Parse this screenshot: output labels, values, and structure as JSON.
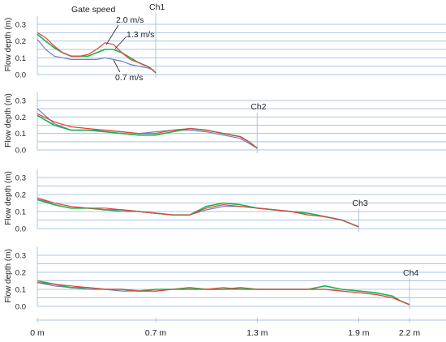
{
  "chart_data": {
    "type": "line",
    "ylabel": "Flow depth (m)",
    "yticks": [
      "0.3",
      "0.2",
      "0.1",
      "0.0"
    ],
    "ylim": [
      0,
      0.35
    ],
    "xlim": [
      0,
      2.3
    ],
    "xticks": [
      {
        "value": 0,
        "label": "0 m"
      },
      {
        "value": 0.7,
        "label": "0.7 m"
      },
      {
        "value": 1.3,
        "label": "1.3 m"
      },
      {
        "value": 1.9,
        "label": "1.9 m"
      },
      {
        "value": 2.2,
        "label": "2.2 m"
      }
    ],
    "legend_title": "Gate speed",
    "series_labels": [
      "2.0 m/s",
      "1.3 m/s",
      "0.7 m/s"
    ],
    "colors": {
      "2.0 m/s": "#e8403a",
      "1.3 m/s": "#19b34b",
      "0.7 m/s": "#6f7fc4"
    },
    "panels": [
      {
        "label": "Ch1",
        "front": 0.7,
        "series": [
          {
            "name": "2.0 m/s",
            "x": [
              0,
              0.05,
              0.1,
              0.15,
              0.2,
              0.25,
              0.3,
              0.35,
              0.4,
              0.45,
              0.5,
              0.55,
              0.6,
              0.65,
              0.68,
              0.7
            ],
            "y": [
              0.25,
              0.22,
              0.17,
              0.13,
              0.11,
              0.11,
              0.12,
              0.15,
              0.19,
              0.18,
              0.13,
              0.09,
              0.07,
              0.05,
              0.03,
              0.01
            ]
          },
          {
            "name": "1.3 m/s",
            "x": [
              0,
              0.05,
              0.1,
              0.15,
              0.2,
              0.25,
              0.3,
              0.35,
              0.4,
              0.45,
              0.5,
              0.55,
              0.6,
              0.65,
              0.68,
              0.7
            ],
            "y": [
              0.24,
              0.2,
              0.16,
              0.13,
              0.11,
              0.11,
              0.11,
              0.13,
              0.15,
              0.15,
              0.13,
              0.1,
              0.07,
              0.05,
              0.03,
              0.01
            ]
          },
          {
            "name": "0.7 m/s",
            "x": [
              0,
              0.05,
              0.1,
              0.15,
              0.2,
              0.25,
              0.3,
              0.35,
              0.4,
              0.45,
              0.5,
              0.55,
              0.6,
              0.65,
              0.68,
              0.7
            ],
            "y": [
              0.21,
              0.15,
              0.11,
              0.1,
              0.09,
              0.09,
              0.09,
              0.09,
              0.1,
              0.09,
              0.08,
              0.06,
              0.05,
              0.04,
              0.03,
              0.01
            ]
          }
        ]
      },
      {
        "label": "Ch2",
        "front": 1.3,
        "series": [
          {
            "name": "2.0 m/s",
            "x": [
              0,
              0.1,
              0.2,
              0.3,
              0.4,
              0.5,
              0.6,
              0.7,
              0.8,
              0.9,
              1.0,
              1.1,
              1.2,
              1.25,
              1.3
            ],
            "y": [
              0.22,
              0.17,
              0.14,
              0.13,
              0.12,
              0.11,
              0.1,
              0.1,
              0.12,
              0.13,
              0.12,
              0.1,
              0.08,
              0.05,
              0.01
            ]
          },
          {
            "name": "1.3 m/s",
            "x": [
              0,
              0.1,
              0.2,
              0.3,
              0.4,
              0.5,
              0.6,
              0.7,
              0.8,
              0.9,
              1.0,
              1.1,
              1.2,
              1.25,
              1.3
            ],
            "y": [
              0.21,
              0.15,
              0.12,
              0.12,
              0.11,
              0.1,
              0.09,
              0.09,
              0.11,
              0.13,
              0.12,
              0.1,
              0.08,
              0.05,
              0.01
            ]
          },
          {
            "name": "0.7 m/s",
            "x": [
              0,
              0.1,
              0.2,
              0.3,
              0.4,
              0.5,
              0.6,
              0.7,
              0.8,
              0.9,
              1.0,
              1.1,
              1.2,
              1.25,
              1.3
            ],
            "y": [
              0.25,
              0.16,
              0.12,
              0.12,
              0.12,
              0.11,
              0.1,
              0.11,
              0.12,
              0.12,
              0.11,
              0.09,
              0.07,
              0.04,
              0.01
            ]
          }
        ]
      },
      {
        "label": "Ch3",
        "front": 1.9,
        "series": [
          {
            "name": "2.0 m/s",
            "x": [
              0,
              0.1,
              0.2,
              0.3,
              0.4,
              0.5,
              0.6,
              0.7,
              0.8,
              0.9,
              1.0,
              1.1,
              1.2,
              1.3,
              1.4,
              1.5,
              1.6,
              1.7,
              1.8,
              1.85,
              1.9
            ],
            "y": [
              0.18,
              0.15,
              0.13,
              0.12,
              0.12,
              0.11,
              0.1,
              0.09,
              0.08,
              0.08,
              0.12,
              0.14,
              0.13,
              0.12,
              0.11,
              0.1,
              0.08,
              0.07,
              0.05,
              0.03,
              0.01
            ]
          },
          {
            "name": "1.3 m/s",
            "x": [
              0,
              0.1,
              0.2,
              0.3,
              0.4,
              0.5,
              0.6,
              0.7,
              0.8,
              0.9,
              1.0,
              1.1,
              1.2,
              1.3,
              1.4,
              1.5,
              1.6,
              1.7,
              1.8,
              1.85,
              1.9
            ],
            "y": [
              0.17,
              0.14,
              0.12,
              0.12,
              0.11,
              0.11,
              0.1,
              0.09,
              0.08,
              0.08,
              0.13,
              0.15,
              0.14,
              0.12,
              0.11,
              0.1,
              0.09,
              0.07,
              0.05,
              0.03,
              0.01
            ]
          },
          {
            "name": "0.7 m/s",
            "x": [
              0,
              0.1,
              0.2,
              0.3,
              0.4,
              0.5,
              0.6,
              0.7,
              0.8,
              0.9,
              1.0,
              1.1,
              1.2,
              1.3,
              1.4,
              1.5,
              1.6,
              1.7,
              1.8,
              1.85,
              1.9
            ],
            "y": [
              0.18,
              0.14,
              0.12,
              0.12,
              0.11,
              0.1,
              0.1,
              0.09,
              0.08,
              0.08,
              0.11,
              0.13,
              0.13,
              0.12,
              0.11,
              0.1,
              0.08,
              0.07,
              0.05,
              0.03,
              0.01
            ]
          }
        ]
      },
      {
        "label": "Ch4",
        "front": 2.2,
        "series": [
          {
            "name": "2.0 m/s",
            "x": [
              0,
              0.1,
              0.2,
              0.3,
              0.4,
              0.5,
              0.6,
              0.7,
              0.8,
              0.9,
              1.0,
              1.1,
              1.2,
              1.3,
              1.4,
              1.5,
              1.6,
              1.7,
              1.8,
              1.9,
              2.0,
              2.1,
              2.15,
              2.2
            ],
            "y": [
              0.14,
              0.13,
              0.12,
              0.11,
              0.1,
              0.1,
              0.09,
              0.09,
              0.1,
              0.1,
              0.1,
              0.11,
              0.1,
              0.1,
              0.1,
              0.1,
              0.1,
              0.1,
              0.09,
              0.08,
              0.07,
              0.05,
              0.03,
              0.01
            ]
          },
          {
            "name": "1.3 m/s",
            "x": [
              0,
              0.1,
              0.2,
              0.3,
              0.4,
              0.5,
              0.6,
              0.7,
              0.8,
              0.9,
              1.0,
              1.1,
              1.2,
              1.3,
              1.4,
              1.5,
              1.6,
              1.7,
              1.8,
              1.9,
              2.0,
              2.1,
              2.15,
              2.2
            ],
            "y": [
              0.15,
              0.13,
              0.11,
              0.11,
              0.1,
              0.1,
              0.09,
              0.1,
              0.1,
              0.11,
              0.1,
              0.1,
              0.11,
              0.1,
              0.1,
              0.1,
              0.1,
              0.12,
              0.1,
              0.09,
              0.08,
              0.06,
              0.03,
              0.01
            ]
          },
          {
            "name": "0.7 m/s",
            "x": [
              0,
              0.1,
              0.2,
              0.3,
              0.4,
              0.5,
              0.6,
              0.7,
              0.8,
              0.9,
              1.0,
              1.1,
              1.2,
              1.3,
              1.4,
              1.5,
              1.6,
              1.7,
              1.8,
              1.9,
              2.0,
              2.1,
              2.15,
              2.2
            ],
            "y": [
              0.14,
              0.12,
              0.11,
              0.1,
              0.1,
              0.09,
              0.09,
              0.09,
              0.1,
              0.1,
              0.1,
              0.1,
              0.1,
              0.1,
              0.1,
              0.1,
              0.1,
              0.1,
              0.09,
              0.08,
              0.07,
              0.05,
              0.03,
              0.01
            ]
          }
        ]
      }
    ]
  }
}
